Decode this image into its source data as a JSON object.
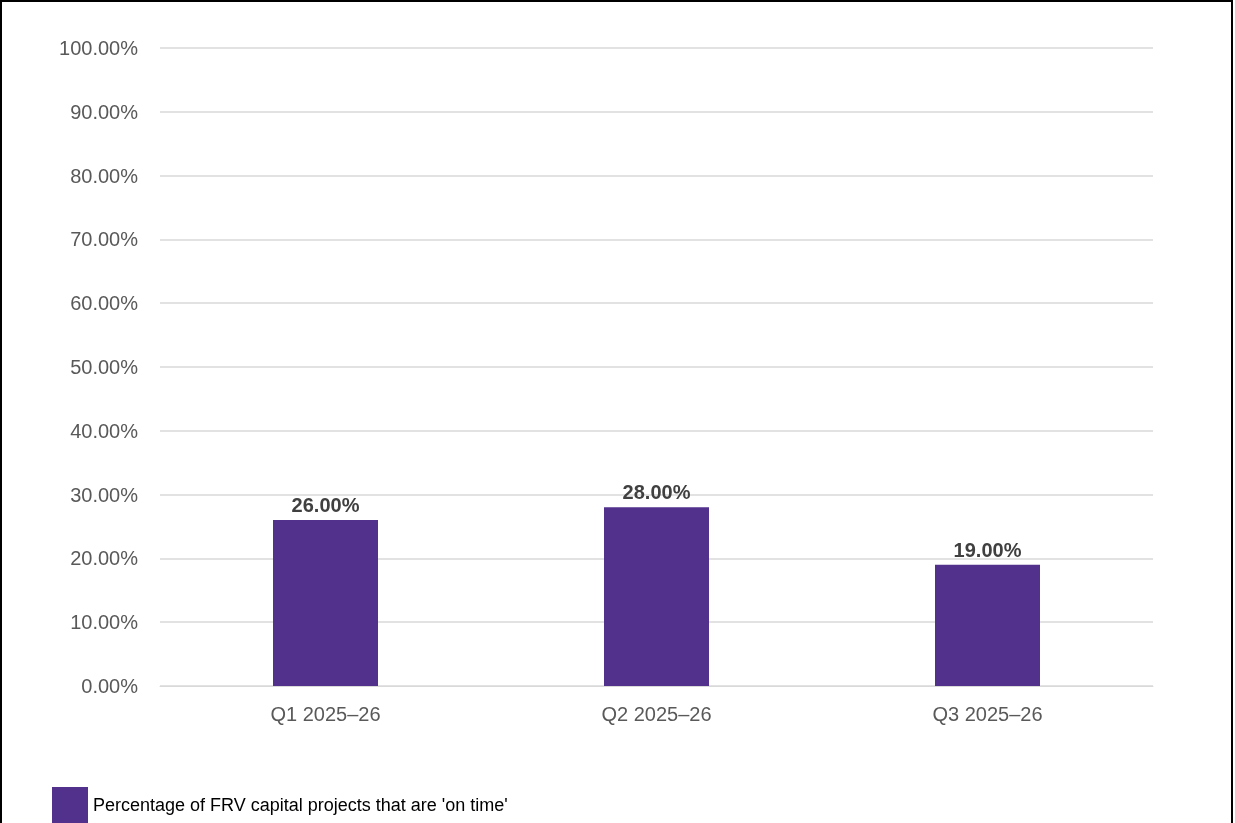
{
  "chart_data": {
    "type": "bar",
    "categories": [
      "Q1 2025–26",
      "Q2 2025–26",
      "Q3 2025–26"
    ],
    "series": [
      {
        "name": "Percentage of FRV capital projects that are 'on time'",
        "color": "#51318b",
        "values": [
          26,
          28,
          19
        ],
        "value_labels": [
          "26.00%",
          "28.00%",
          "19.00%"
        ]
      }
    ],
    "ylim": [
      0,
      100
    ],
    "yticks": [
      {
        "value": 0,
        "label": "0.00%"
      },
      {
        "value": 10,
        "label": "10.00%"
      },
      {
        "value": 20,
        "label": "20.00%"
      },
      {
        "value": 30,
        "label": "30.00%"
      },
      {
        "value": 40,
        "label": "40.00%"
      },
      {
        "value": 50,
        "label": "50.00%"
      },
      {
        "value": 60,
        "label": "60.00%"
      },
      {
        "value": 70,
        "label": "70.00%"
      },
      {
        "value": 80,
        "label": "80.00%"
      },
      {
        "value": 90,
        "label": "90.00%"
      },
      {
        "value": 100,
        "label": "100.00%"
      }
    ],
    "grid": "y",
    "legend": "bottom left"
  }
}
